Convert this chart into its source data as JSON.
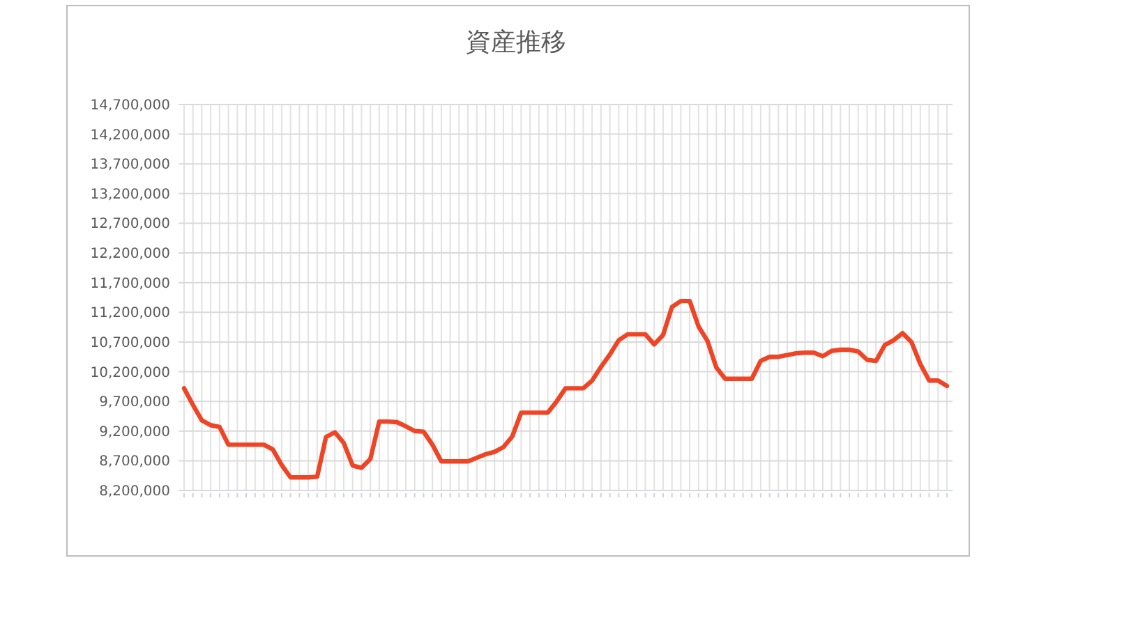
{
  "chart_data": {
    "type": "line",
    "title": "資産推移",
    "categories": [
      null,
      null,
      null,
      null,
      null,
      null,
      null,
      null,
      null,
      null,
      null,
      null,
      null,
      null,
      null,
      null,
      null,
      null,
      null,
      null,
      null,
      null,
      null,
      null,
      null,
      null,
      null,
      null,
      null,
      null,
      null,
      null,
      null,
      null,
      null,
      null,
      null,
      null,
      null,
      null,
      null,
      null,
      null,
      null,
      null,
      null,
      null,
      null,
      null,
      null,
      null,
      null,
      null,
      null,
      null,
      null,
      null,
      null,
      null,
      null,
      null,
      null,
      null,
      null,
      null,
      null,
      null,
      null,
      null,
      null,
      null,
      null,
      null,
      null,
      null,
      null,
      null,
      null,
      null,
      null,
      null,
      null,
      null,
      null,
      null,
      null,
      null
    ],
    "series": [
      {
        "color": "#ef4527",
        "values": [
          9920000,
          9640000,
          9380000,
          9300000,
          9270000,
          8970000,
          8970000,
          8970000,
          8970000,
          8970000,
          8890000,
          8630000,
          8420000,
          8420000,
          8420000,
          8430000,
          9100000,
          9180000,
          9000000,
          8620000,
          8580000,
          8730000,
          9360000,
          9360000,
          9350000,
          9280000,
          9200000,
          9190000,
          8970000,
          8690000,
          8690000,
          8690000,
          8690000,
          8750000,
          8810000,
          8850000,
          8930000,
          9110000,
          9510000,
          9510000,
          9510000,
          9510000,
          9700000,
          9920000,
          9920000,
          9920000,
          10050000,
          10280000,
          10490000,
          10730000,
          10830000,
          10830000,
          10830000,
          10660000,
          10820000,
          11290000,
          11390000,
          11390000,
          10960000,
          10720000,
          10270000,
          10080000,
          10080000,
          10080000,
          10080000,
          10380000,
          10450000,
          10450000,
          10480000,
          10510000,
          10520000,
          10520000,
          10460000,
          10550000,
          10570000,
          10570000,
          10540000,
          10400000,
          10380000,
          10650000,
          10730000,
          10850000,
          10700000,
          10330000,
          10050000,
          10050000,
          9960000
        ]
      }
    ],
    "ylim": [
      8200000,
      14700000
    ],
    "yticks": [
      {
        "value": 8200000,
        "label": "8,200,000"
      },
      {
        "value": 8700000,
        "label": "8,700,000"
      },
      {
        "value": 9200000,
        "label": "9,200,000"
      },
      {
        "value": 9700000,
        "label": "9,700,000"
      },
      {
        "value": 10200000,
        "label": "10,200,000"
      },
      {
        "value": 10700000,
        "label": "10,700,000"
      },
      {
        "value": 11200000,
        "label": "11,200,000"
      },
      {
        "value": 11700000,
        "label": "11,700,000"
      },
      {
        "value": 12200000,
        "label": "12,200,000"
      },
      {
        "value": 12700000,
        "label": "12,700,000"
      },
      {
        "value": 13200000,
        "label": "13,200,000"
      },
      {
        "value": 13700000,
        "label": "13,700,000"
      },
      {
        "value": 14200000,
        "label": "14,200,000"
      },
      {
        "value": 14700000,
        "label": "14,700,000"
      }
    ],
    "grid": true,
    "tick_labels": "y",
    "marker": "none",
    "line_style": "solid"
  }
}
